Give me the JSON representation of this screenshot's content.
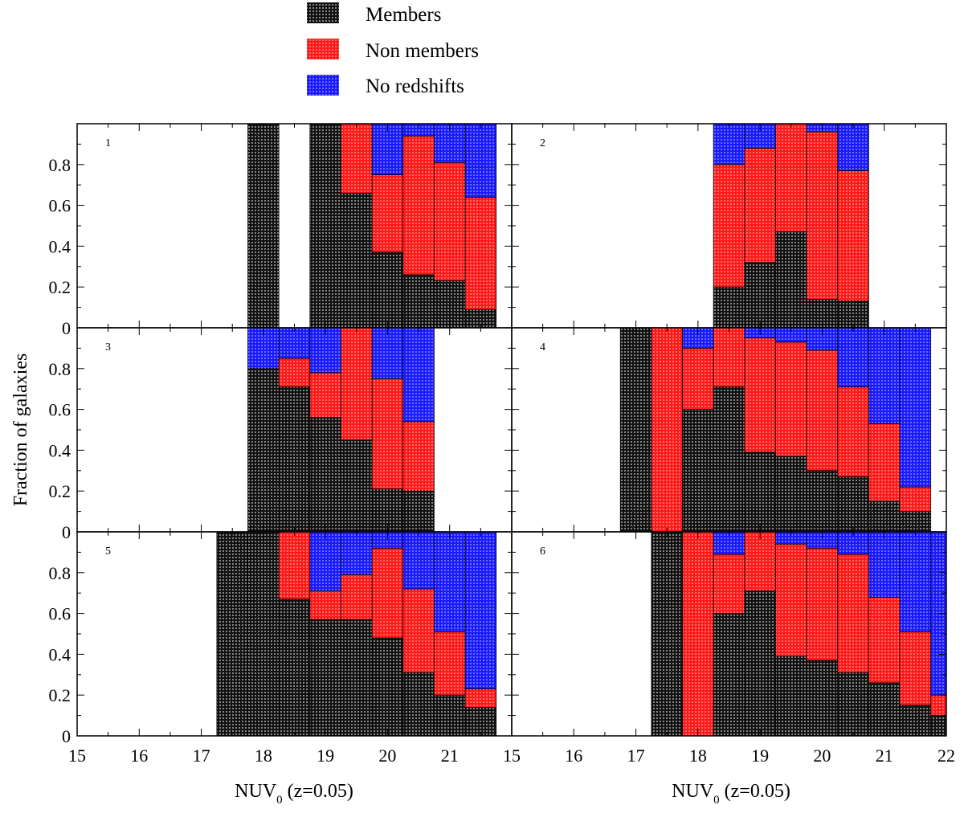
{
  "colors": {
    "members": "#111111",
    "non_members": "#ff1a1a",
    "no_redshifts": "#1a1aff",
    "frame": "#000000"
  },
  "chart_data": {
    "type": "bar",
    "subtype": "stacked-fraction-histogram",
    "ylabel": "Fraction of galaxies",
    "xlabel_main": "NUV",
    "xlabel_sub": "0",
    "xlabel_tail": " (z=0.05)",
    "xlim": [
      15,
      22
    ],
    "ylim": [
      0,
      1
    ],
    "bin_width": 0.5,
    "yticks": [
      0,
      0.2,
      0.4,
      0.6,
      0.8
    ],
    "ytick_labels": [
      "0",
      "0.2",
      "0.4",
      "0.6",
      "0.8"
    ],
    "xticks_left": [
      15,
      16,
      17,
      18,
      19,
      20,
      21
    ],
    "xticks_left_labels": [
      "15",
      "16",
      "17",
      "18",
      "19",
      "20",
      "21"
    ],
    "xticks_right": [
      15,
      16,
      17,
      18,
      19,
      20,
      21,
      22
    ],
    "xticks_right_labels": [
      "15",
      "16",
      "17",
      "18",
      "19",
      "20",
      "21",
      "22"
    ],
    "legend": [
      {
        "key": "members",
        "label": "Members"
      },
      {
        "key": "non_members",
        "label": "Non members"
      },
      {
        "key": "no_redshifts",
        "label": "No redshifts"
      }
    ],
    "panels": [
      {
        "id": "1",
        "label": "1",
        "col": 0,
        "row": 0,
        "bins": [
          {
            "x0": 17.75,
            "members": 1.0,
            "non_members": 0.0,
            "no_redshifts": 0.0
          },
          {
            "x0": 18.75,
            "members": 1.0,
            "non_members": 0.0,
            "no_redshifts": 0.0
          },
          {
            "x0": 19.25,
            "members": 0.66,
            "non_members": 0.34,
            "no_redshifts": 0.0
          },
          {
            "x0": 19.75,
            "members": 0.37,
            "non_members": 0.38,
            "no_redshifts": 0.25
          },
          {
            "x0": 20.25,
            "members": 0.26,
            "non_members": 0.68,
            "no_redshifts": 0.06
          },
          {
            "x0": 20.75,
            "members": 0.23,
            "non_members": 0.58,
            "no_redshifts": 0.19
          },
          {
            "x0": 21.25,
            "members": 0.09,
            "non_members": 0.55,
            "no_redshifts": 0.36
          }
        ]
      },
      {
        "id": "2",
        "label": "2",
        "col": 1,
        "row": 0,
        "bins": [
          {
            "x0": 18.25,
            "members": 0.2,
            "non_members": 0.6,
            "no_redshifts": 0.2
          },
          {
            "x0": 18.75,
            "members": 0.32,
            "non_members": 0.56,
            "no_redshifts": 0.12
          },
          {
            "x0": 19.25,
            "members": 0.47,
            "non_members": 0.53,
            "no_redshifts": 0.0
          },
          {
            "x0": 19.75,
            "members": 0.14,
            "non_members": 0.82,
            "no_redshifts": 0.04
          },
          {
            "x0": 20.25,
            "members": 0.13,
            "non_members": 0.64,
            "no_redshifts": 0.23
          }
        ]
      },
      {
        "id": "3",
        "label": "3",
        "col": 0,
        "row": 1,
        "bins": [
          {
            "x0": 17.75,
            "members": 0.8,
            "non_members": 0.0,
            "no_redshifts": 0.2
          },
          {
            "x0": 18.25,
            "members": 0.71,
            "non_members": 0.14,
            "no_redshifts": 0.15
          },
          {
            "x0": 18.75,
            "members": 0.56,
            "non_members": 0.22,
            "no_redshifts": 0.22
          },
          {
            "x0": 19.25,
            "members": 0.45,
            "non_members": 0.55,
            "no_redshifts": 0.0
          },
          {
            "x0": 19.75,
            "members": 0.21,
            "non_members": 0.54,
            "no_redshifts": 0.25
          },
          {
            "x0": 20.25,
            "members": 0.2,
            "non_members": 0.34,
            "no_redshifts": 0.46
          }
        ]
      },
      {
        "id": "4",
        "label": "4",
        "col": 1,
        "row": 1,
        "bins": [
          {
            "x0": 16.75,
            "members": 1.0,
            "non_members": 0.0,
            "no_redshifts": 0.0
          },
          {
            "x0": 17.25,
            "members": 0.0,
            "non_members": 1.0,
            "no_redshifts": 0.0
          },
          {
            "x0": 17.75,
            "members": 0.6,
            "non_members": 0.3,
            "no_redshifts": 0.1
          },
          {
            "x0": 18.25,
            "members": 0.71,
            "non_members": 0.29,
            "no_redshifts": 0.0
          },
          {
            "x0": 18.75,
            "members": 0.39,
            "non_members": 0.56,
            "no_redshifts": 0.05
          },
          {
            "x0": 19.25,
            "members": 0.37,
            "non_members": 0.56,
            "no_redshifts": 0.07
          },
          {
            "x0": 19.75,
            "members": 0.3,
            "non_members": 0.59,
            "no_redshifts": 0.11
          },
          {
            "x0": 20.25,
            "members": 0.27,
            "non_members": 0.44,
            "no_redshifts": 0.29
          },
          {
            "x0": 20.75,
            "members": 0.15,
            "non_members": 0.38,
            "no_redshifts": 0.47
          },
          {
            "x0": 21.25,
            "members": 0.1,
            "non_members": 0.12,
            "no_redshifts": 0.78
          }
        ]
      },
      {
        "id": "5",
        "label": "5",
        "col": 0,
        "row": 2,
        "bins": [
          {
            "x0": 17.25,
            "members": 1.0,
            "non_members": 0.0,
            "no_redshifts": 0.0
          },
          {
            "x0": 17.75,
            "members": 1.0,
            "non_members": 0.0,
            "no_redshifts": 0.0
          },
          {
            "x0": 18.25,
            "members": 0.67,
            "non_members": 0.33,
            "no_redshifts": 0.0
          },
          {
            "x0": 18.75,
            "members": 0.57,
            "non_members": 0.14,
            "no_redshifts": 0.29
          },
          {
            "x0": 19.25,
            "members": 0.57,
            "non_members": 0.22,
            "no_redshifts": 0.21
          },
          {
            "x0": 19.75,
            "members": 0.48,
            "non_members": 0.44,
            "no_redshifts": 0.08
          },
          {
            "x0": 20.25,
            "members": 0.31,
            "non_members": 0.41,
            "no_redshifts": 0.28
          },
          {
            "x0": 20.75,
            "members": 0.2,
            "non_members": 0.31,
            "no_redshifts": 0.49
          },
          {
            "x0": 21.25,
            "members": 0.14,
            "non_members": 0.09,
            "no_redshifts": 0.77
          }
        ]
      },
      {
        "id": "6",
        "label": "6",
        "col": 1,
        "row": 2,
        "bins": [
          {
            "x0": 17.25,
            "members": 1.0,
            "non_members": 0.0,
            "no_redshifts": 0.0
          },
          {
            "x0": 17.75,
            "members": 0.0,
            "non_members": 1.0,
            "no_redshifts": 0.0
          },
          {
            "x0": 18.25,
            "members": 0.6,
            "non_members": 0.29,
            "no_redshifts": 0.11
          },
          {
            "x0": 18.75,
            "members": 0.71,
            "non_members": 0.29,
            "no_redshifts": 0.0
          },
          {
            "x0": 19.25,
            "members": 0.39,
            "non_members": 0.55,
            "no_redshifts": 0.06
          },
          {
            "x0": 19.75,
            "members": 0.37,
            "non_members": 0.55,
            "no_redshifts": 0.08
          },
          {
            "x0": 20.25,
            "members": 0.31,
            "non_members": 0.58,
            "no_redshifts": 0.11
          },
          {
            "x0": 20.75,
            "members": 0.26,
            "non_members": 0.42,
            "no_redshifts": 0.32
          },
          {
            "x0": 21.25,
            "members": 0.15,
            "non_members": 0.36,
            "no_redshifts": 0.49
          },
          {
            "x0": 21.75,
            "members": 0.1,
            "non_members": 0.1,
            "no_redshifts": 0.8
          }
        ]
      }
    ]
  }
}
